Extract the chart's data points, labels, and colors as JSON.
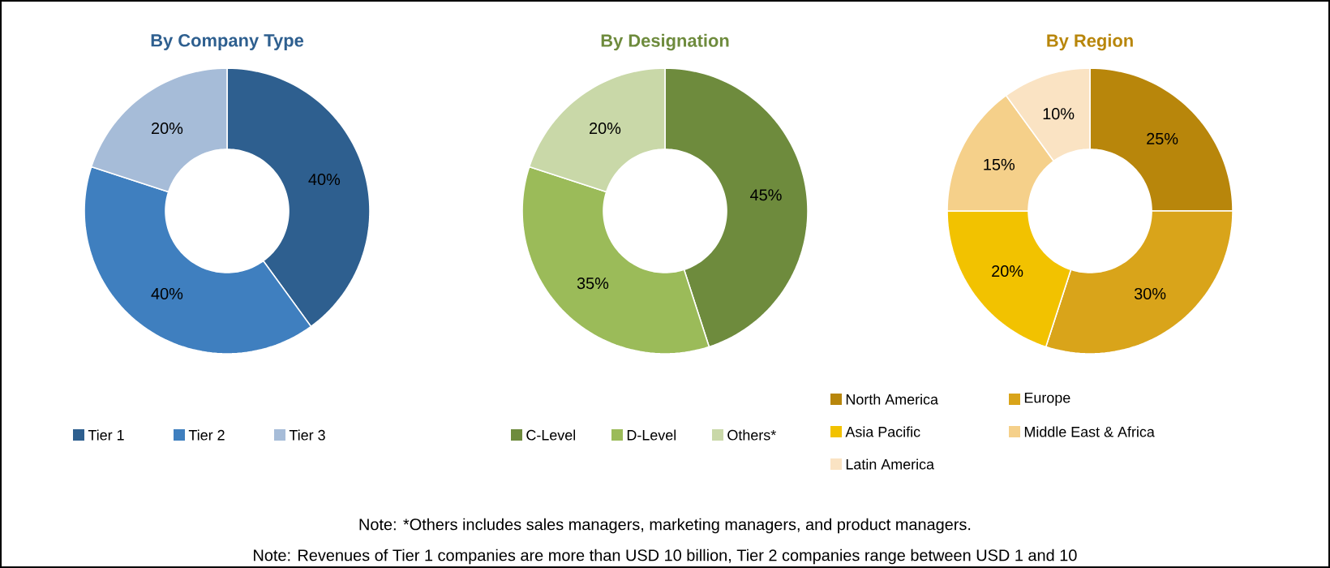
{
  "chart_data": [
    {
      "type": "donut",
      "title": "By Company Type",
      "categories": [
        "Tier 1",
        "Tier 2",
        "Tier 3"
      ],
      "values": [
        40,
        40,
        20
      ],
      "value_labels": [
        "40%",
        "40%",
        "20%"
      ],
      "colors": [
        "#2e5f8f",
        "#3f7fbf",
        "#a6bcd8"
      ],
      "legend": "bottom"
    },
    {
      "type": "donut",
      "title": "By Designation",
      "categories": [
        "C-Level",
        "D-Level",
        "Others*"
      ],
      "values": [
        45,
        35,
        20
      ],
      "value_labels": [
        "45%",
        "35%",
        "20%"
      ],
      "colors": [
        "#6e8b3d",
        "#9bbb59",
        "#c9d8a8"
      ],
      "legend": "bottom",
      "annotations": [
        "Note: *Others includes sales managers, marketing managers, and product managers.",
        "Note: Revenues of Tier 1 companies are more than USD 10 billion, Tier 2 companies range between USD 1 and 10"
      ]
    },
    {
      "type": "donut",
      "title": "By Region",
      "categories": [
        "North America",
        "Europe",
        "Asia Pacific",
        "Middle East & Africa",
        "Latin America"
      ],
      "values": [
        25,
        30,
        20,
        15,
        10
      ],
      "value_labels": [
        "25%",
        "30%",
        "20%",
        "15%",
        "10%"
      ],
      "colors": [
        "#b8860b",
        "#d9a41a",
        "#f2c200",
        "#f5d08a",
        "#fae3c3"
      ],
      "legend": "bottom"
    }
  ]
}
